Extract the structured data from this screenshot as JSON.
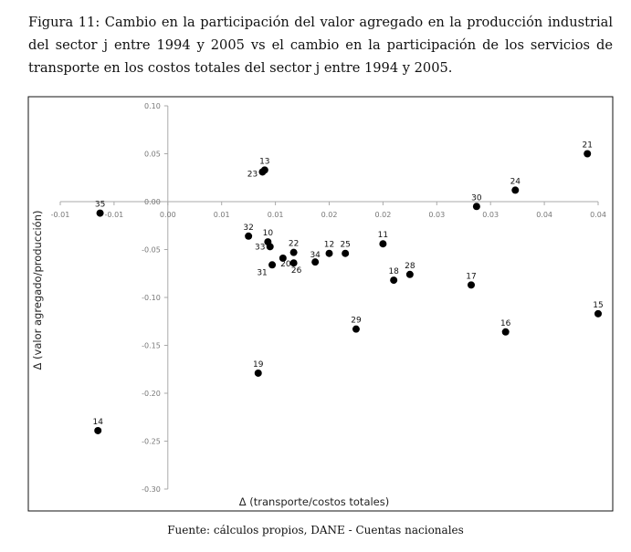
{
  "caption": "Figura 11: Cambio en la participación del valor agregado en la producción industrial del sector j entre 1994 y 2005 vs el cambio en la participación de los servicios de transporte en los costos totales del sector j entre 1994 y 2005.",
  "source": "Fuente: cálculos propios, DANE - Cuentas nacionales",
  "chart_data": {
    "type": "scatter",
    "title": "",
    "xlabel": "Δ (transporte/costos totales)",
    "ylabel": "Δ (valor agregado/producción)",
    "xlim": [
      -0.01,
      0.04
    ],
    "ylim": [
      -0.3,
      0.1
    ],
    "x_ticks": [
      "-0.01",
      "-0.01",
      "0.00",
      "0.01",
      "0.01",
      "0.02",
      "0.02",
      "0.03",
      "0.03",
      "0.04",
      "0.04"
    ],
    "y_ticks": [
      "0.10",
      "0.05",
      "0.00",
      "-0.05",
      "-0.10",
      "-0.15",
      "-0.20",
      "-0.25",
      "-0.30"
    ],
    "grid": false,
    "legend": false,
    "marker_color": "#000000",
    "points": [
      {
        "label": "13",
        "x": 0.009,
        "y": 0.033
      },
      {
        "label": "23",
        "x": 0.0088,
        "y": 0.031
      },
      {
        "label": "21",
        "x": 0.039,
        "y": 0.05
      },
      {
        "label": "24",
        "x": 0.0323,
        "y": 0.012
      },
      {
        "label": "30",
        "x": 0.0287,
        "y": -0.005
      },
      {
        "label": "35",
        "x": -0.0063,
        "y": -0.012
      },
      {
        "label": "32",
        "x": 0.0075,
        "y": -0.036
      },
      {
        "label": "10",
        "x": 0.0093,
        "y": -0.042
      },
      {
        "label": "33",
        "x": 0.0095,
        "y": -0.047
      },
      {
        "label": "22",
        "x": 0.0117,
        "y": -0.053
      },
      {
        "label": "12",
        "x": 0.015,
        "y": -0.054
      },
      {
        "label": "25",
        "x": 0.0165,
        "y": -0.054
      },
      {
        "label": "11",
        "x": 0.02,
        "y": -0.044
      },
      {
        "label": "34",
        "x": 0.0137,
        "y": -0.063
      },
      {
        "label": "20",
        "x": 0.0107,
        "y": -0.059
      },
      {
        "label": "31",
        "x": 0.0097,
        "y": -0.066
      },
      {
        "label": "26",
        "x": 0.0117,
        "y": -0.064
      },
      {
        "label": "18",
        "x": 0.021,
        "y": -0.082
      },
      {
        "label": "28",
        "x": 0.0225,
        "y": -0.076
      },
      {
        "label": "17",
        "x": 0.0282,
        "y": -0.087
      },
      {
        "label": "29",
        "x": 0.0175,
        "y": -0.133
      },
      {
        "label": "16",
        "x": 0.0314,
        "y": -0.136
      },
      {
        "label": "15",
        "x": 0.04,
        "y": -0.117
      },
      {
        "label": "19",
        "x": 0.0084,
        "y": -0.179
      },
      {
        "label": "14",
        "x": -0.0065,
        "y": -0.239
      }
    ]
  }
}
